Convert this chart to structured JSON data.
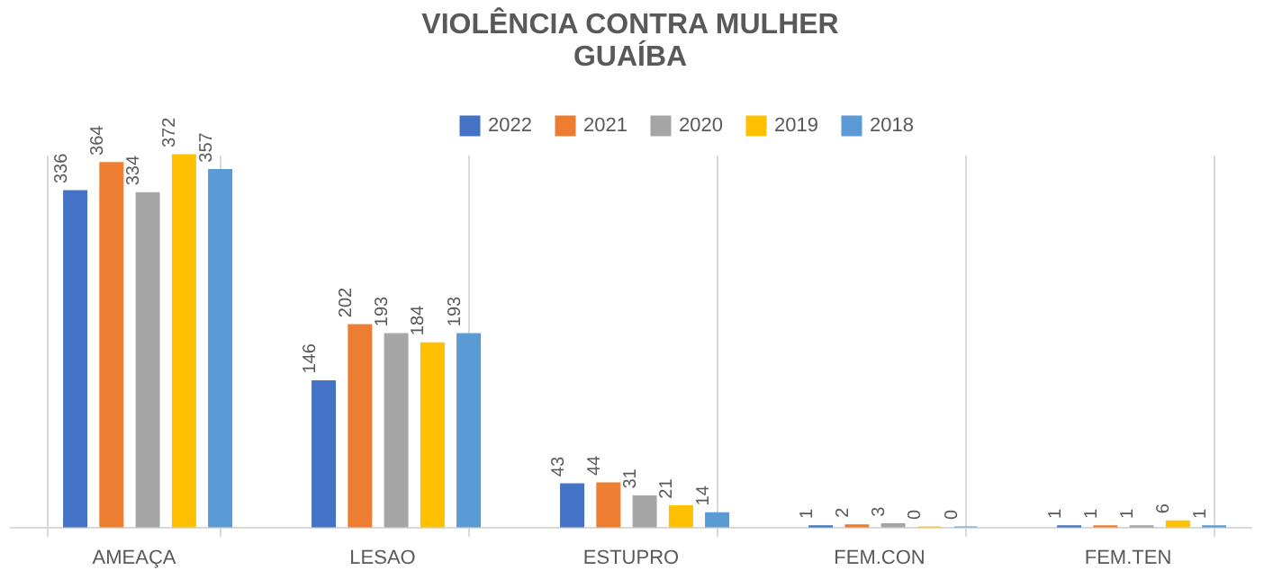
{
  "chart_data": {
    "type": "bar",
    "title": "VIOLÊNCIA CONTRA MULHER\nGUAÍBA",
    "categories": [
      "AMEAÇA",
      "LESAO",
      "ESTUPRO",
      "FEM.CON",
      "FEM.TEN"
    ],
    "series": [
      {
        "name": "2022",
        "color": "#4472c4",
        "values": [
          336,
          146,
          43,
          1,
          1
        ]
      },
      {
        "name": "2021",
        "color": "#ed7d31",
        "values": [
          364,
          202,
          44,
          2,
          1
        ]
      },
      {
        "name": "2020",
        "color": "#a5a5a5",
        "values": [
          334,
          193,
          31,
          3,
          1
        ]
      },
      {
        "name": "2019",
        "color": "#ffc000",
        "values": [
          372,
          184,
          21,
          0,
          6
        ]
      },
      {
        "name": "2018",
        "color": "#5b9bd5",
        "values": [
          357,
          193,
          14,
          0,
          1
        ]
      }
    ],
    "data_labels": true,
    "legend": "top",
    "grid": false,
    "tick_labels": "x"
  }
}
